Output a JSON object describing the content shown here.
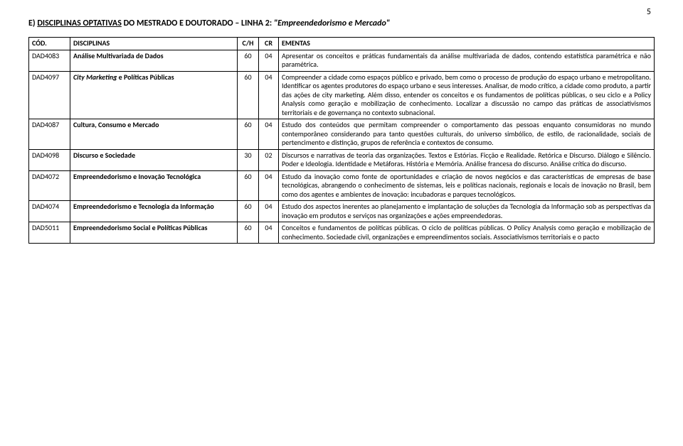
{
  "page_number": "5",
  "section_title_prefix": "E) ",
  "section_title_underlined": "DISCIPLINAS OPTATIVAS",
  "section_title_rest": " DO MESTRADO E DOUTORADO – LINHA 2: ",
  "section_title_quoted": "\"Empreendedorismo e Mercado\"",
  "headers": {
    "cod": "CÓD.",
    "disciplinas": "DISCIPLINAS",
    "ch": "C/H",
    "cr": "CR",
    "ementas": "EMENTAS"
  },
  "rows": [
    {
      "cod": "DAD4083",
      "disc": "Análise Multivariada de Dados",
      "ch": "60",
      "cr": "04",
      "ementa": "Apresentar os conceitos e práticas fundamentais da análise multivariada de dados, contendo estatística paramétrica e não paramétrica."
    },
    {
      "cod": "DAD4097",
      "disc_italic_part": "City Marketing",
      "disc_rest": " e Políticas Públicas",
      "ch": "60",
      "cr": "04",
      "ementa": "Compreender a cidade como espaços público e privado, bem como o processo de produção do espaço urbano e metropolitano. Identificar os agentes produtores do espaço urbano e seus interesses. Analisar, de modo crítico, a cidade como produto, a partir das ações de city marketing. Além disso, entender os conceitos e os fundamentos de políticas públicas, o seu ciclo e a Policy Analysis como geração e mobilização de conhecimento. Localizar a discussão no campo das práticas de associativismos territoriais e de governança no contexto subnacional."
    },
    {
      "cod": "DAD4087",
      "disc": "Cultura, Consumo e Mercado",
      "ch": "60",
      "cr": "04",
      "ementa": "Estudo dos conteúdos que permitam compreender o comportamento das pessoas enquanto consumidoras no mundo contemporâneo considerando para tanto questões culturais, do universo simbólico, de estilo, de racionalidade, sociais de pertencimento e distinção, grupos de referência e contextos de consumo."
    },
    {
      "cod": "DAD4098",
      "disc": "Discurso e Sociedade",
      "ch": "30",
      "cr": "02",
      "ementa": "Discursos e narrativas de teoria das organizações. Textos e Estórias. Ficção e Realidade. Retórica e Discurso. Diálogo e Silêncio. Poder e Ideologia. Identidade e Metáforas. História e Memória. Análise francesa do discurso. Análise crítica do discurso."
    },
    {
      "cod": "DAD4072",
      "disc": "Empreendedorismo e Inovação Tecnológica",
      "ch": "60",
      "cr": "04",
      "ementa": "Estudo da inovação como fonte de oportunidades e criação de novos negócios e das características de empresas de base tecnológicas, abrangendo o conhecimento de sistemas, leis e políticas nacionais, regionais e locais de inovação no Brasil, bem como dos agentes e ambientes de inovação: incubadoras e parques tecnológicos."
    },
    {
      "cod": "DAD4074",
      "disc": "Empreendedorismo e Tecnologia da Informação",
      "ch": "60",
      "cr": "04",
      "ementa": "Estudo dos aspectos inerentes ao planejamento e implantação de soluções da Tecnologia da Informação sob as perspectivas da inovação em produtos e serviços nas organizações e ações empreendedoras."
    },
    {
      "cod": "DAD5011",
      "disc": "Empreendedorismo Social e Políticas Públicas",
      "ch": "60",
      "cr": "04",
      "ementa": "Conceitos e fundamentos de políticas públicas. O ciclo de políticas públicas. O Policy Analysis como geração e mobilização de conhecimento. Sociedade civil, organizações e empreendimentos sociais. Associativismos territoriais e o pacto"
    }
  ]
}
